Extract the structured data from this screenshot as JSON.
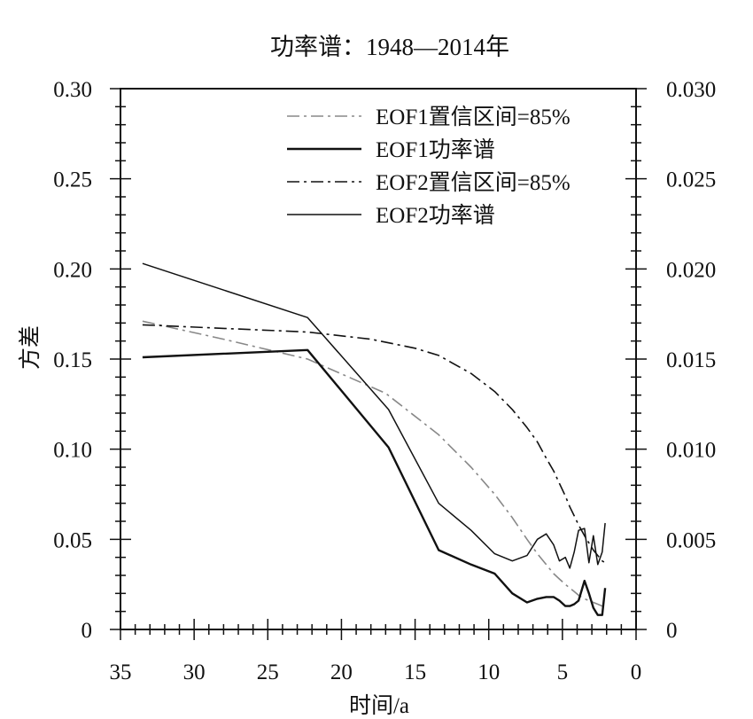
{
  "chart_data": {
    "type": "line",
    "title": "功率谱：1948—2014年",
    "xlabel": "时间/a",
    "ylabel": "方差",
    "xlim": [
      35,
      0
    ],
    "ylim": [
      0,
      0.3
    ],
    "ylim_right": [
      0,
      0.03
    ],
    "x_ticks": [
      35,
      30,
      25,
      20,
      15,
      10,
      5,
      0
    ],
    "x_tick_labels": [
      "35",
      "30",
      "25",
      "20",
      "15",
      "10",
      "5",
      "0"
    ],
    "y_ticks": [
      0,
      0.05,
      0.1,
      0.15,
      0.2,
      0.25,
      0.3
    ],
    "y_tick_labels": [
      "0",
      "0.05",
      "0.10",
      "0.15",
      "0.20",
      "0.25",
      "0.30"
    ],
    "y2_ticks": [
      0,
      0.005,
      0.01,
      0.015,
      0.02,
      0.025,
      0.03
    ],
    "y2_tick_labels": [
      "0",
      "0.005",
      "0.010",
      "0.015",
      "0.020",
      "0.025",
      "0.030"
    ],
    "legend_position": "top-right",
    "series": [
      {
        "name": "EOF1置信区间=85%",
        "style": "dashdot",
        "color": "#888888",
        "axis": "left",
        "x": [
          33.5,
          28,
          22.3,
          17,
          13.4,
          11.2,
          9.6,
          8.4,
          7.4,
          6.7,
          6.1,
          5.6,
          5.2,
          4.8,
          4.5,
          4.2,
          3.9,
          3.5,
          3.2,
          2.9,
          2.6,
          2.3,
          2.1
        ],
        "y": [
          0.171,
          0.161,
          0.15,
          0.131,
          0.108,
          0.09,
          0.075,
          0.062,
          0.05,
          0.042,
          0.036,
          0.031,
          0.028,
          0.025,
          0.023,
          0.021,
          0.019,
          0.017,
          0.016,
          0.015,
          0.014,
          0.013,
          0.013
        ]
      },
      {
        "name": "EOF1功率谱",
        "style": "solid-thick",
        "color": "#111111",
        "axis": "left",
        "x": [
          33.5,
          22.3,
          16.8,
          13.4,
          11.2,
          9.6,
          8.4,
          7.4,
          6.7,
          6.1,
          5.6,
          5.2,
          4.8,
          4.5,
          4.2,
          3.9,
          3.5,
          3.2,
          2.9,
          2.6,
          2.3,
          2.1
        ],
        "y": [
          0.151,
          0.155,
          0.101,
          0.044,
          0.036,
          0.031,
          0.02,
          0.015,
          0.017,
          0.018,
          0.018,
          0.016,
          0.013,
          0.013,
          0.014,
          0.016,
          0.027,
          0.02,
          0.012,
          0.008,
          0.008,
          0.023
        ]
      },
      {
        "name": "EOF2置信区间=85%",
        "style": "dashdot",
        "color": "#111111",
        "axis": "right",
        "x": [
          33.5,
          28,
          22.3,
          18,
          15,
          13.4,
          11.2,
          9.6,
          8.4,
          7.4,
          6.7,
          6.1,
          5.6,
          5.2,
          4.8,
          4.5,
          4.2,
          3.9,
          3.5,
          3.2,
          2.9,
          2.6,
          2.3,
          2.1
        ],
        "y": [
          0.0169,
          0.0167,
          0.0165,
          0.0161,
          0.0156,
          0.0152,
          0.0142,
          0.0132,
          0.0122,
          0.0112,
          0.0104,
          0.0095,
          0.0088,
          0.0081,
          0.0074,
          0.0068,
          0.0063,
          0.0058,
          0.0052,
          0.0048,
          0.0044,
          0.0041,
          0.0038,
          0.0037
        ]
      },
      {
        "name": "EOF2功率谱",
        "style": "solid-thin",
        "color": "#111111",
        "axis": "right",
        "x": [
          33.5,
          22.3,
          16.8,
          13.4,
          11.2,
          9.6,
          8.4,
          7.4,
          6.7,
          6.1,
          5.6,
          5.2,
          4.8,
          4.5,
          4.2,
          3.9,
          3.5,
          3.2,
          2.9,
          2.6,
          2.3,
          2.1
        ],
        "y": [
          0.0203,
          0.0173,
          0.0122,
          0.007,
          0.0055,
          0.0042,
          0.0038,
          0.0041,
          0.005,
          0.0053,
          0.0047,
          0.0038,
          0.004,
          0.0034,
          0.0043,
          0.0055,
          0.0056,
          0.0037,
          0.0052,
          0.0036,
          0.0043,
          0.0059
        ]
      }
    ]
  }
}
